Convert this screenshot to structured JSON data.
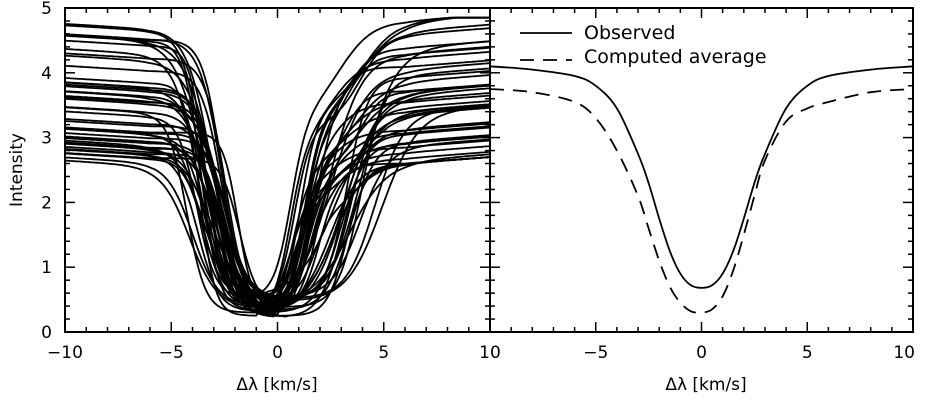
{
  "chart_data": [
    {
      "type": "line",
      "panel": "left",
      "xlabel": "Δλ [km/s]",
      "ylabel": "Intensity",
      "xlim": [
        -10,
        10
      ],
      "ylim": [
        0,
        5
      ],
      "x_ticks": [
        "−10",
        "−5",
        "0",
        "5",
        "10"
      ],
      "y_ticks": [
        "0",
        "1",
        "2",
        "3",
        "4",
        "5"
      ],
      "grid": false,
      "series_family": {
        "description_values": "many individual observed profiles",
        "count": 46,
        "continuum_left": [
          2.55,
          4.75
        ],
        "continuum_right": [
          2.6,
          4.75
        ],
        "line_center_range": [
          -1.0,
          0.5
        ],
        "minimum_range": [
          0.22,
          0.55
        ]
      }
    },
    {
      "type": "line",
      "panel": "right",
      "xlabel": "Δλ [km/s]",
      "ylabel": "",
      "xlim": [
        -10,
        10
      ],
      "ylim": [
        0,
        5
      ],
      "x_ticks": [
        "−5",
        "0",
        "5",
        "10"
      ],
      "grid": false,
      "legend": {
        "placement": "top-left"
      },
      "series": [
        {
          "name": "Observed",
          "style": "solid",
          "x": [
            -10,
            -8,
            -6,
            -5,
            -4,
            -3,
            -2.5,
            -2,
            -1.5,
            -1,
            -0.5,
            0,
            0.5,
            1,
            1.5,
            2,
            2.5,
            3,
            4,
            5,
            6,
            8,
            10
          ],
          "values": [
            4.1,
            4.05,
            3.95,
            3.8,
            3.45,
            2.75,
            2.3,
            1.75,
            1.25,
            0.9,
            0.72,
            0.68,
            0.72,
            0.9,
            1.25,
            1.75,
            2.3,
            2.75,
            3.45,
            3.8,
            3.95,
            4.05,
            4.1
          ]
        },
        {
          "name": "Computed average",
          "style": "dashed",
          "x": [
            -10,
            -8,
            -6,
            -5,
            -4,
            -3,
            -2.5,
            -2,
            -1.5,
            -1,
            -0.5,
            0,
            0.5,
            1,
            1.5,
            2,
            2.5,
            3,
            4,
            5,
            6,
            8,
            10
          ],
          "values": [
            3.75,
            3.7,
            3.55,
            3.3,
            2.8,
            2.1,
            1.6,
            1.1,
            0.7,
            0.45,
            0.32,
            0.3,
            0.35,
            0.55,
            0.95,
            1.5,
            2.1,
            2.65,
            3.25,
            3.45,
            3.55,
            3.7,
            3.75
          ]
        }
      ]
    }
  ]
}
